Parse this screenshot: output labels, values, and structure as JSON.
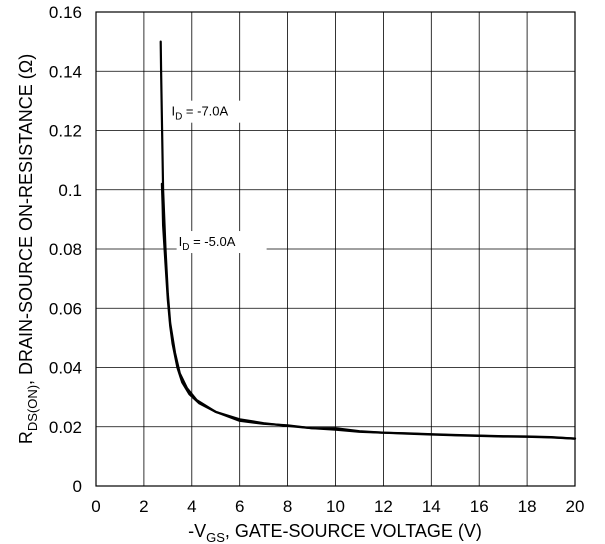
{
  "chart_data": {
    "type": "line",
    "xlabel": {
      "prefix": "-V",
      "sub": "GS",
      "rest": ", GATE-SOURCE VOLTAGE (V)"
    },
    "ylabel": {
      "prefix": "R",
      "sub": "DS(ON)",
      "rest": ", DRAIN-SOURCE ON-RESISTANCE (Ω)"
    },
    "xlim": [
      0,
      20
    ],
    "ylim": [
      0,
      0.16
    ],
    "xticks": [
      0,
      2,
      4,
      6,
      8,
      10,
      12,
      14,
      16,
      18,
      20
    ],
    "yticks": [
      0,
      0.02,
      0.04,
      0.06,
      0.08,
      0.1,
      0.12,
      0.14,
      0.16
    ],
    "xtick_labels": [
      "0",
      "2",
      "4",
      "6",
      "8",
      "10",
      "12",
      "14",
      "16",
      "18",
      "20"
    ],
    "ytick_labels": [
      "0",
      "0.02",
      "0.04",
      "0.06",
      "0.08",
      "0.1",
      "0.12",
      "0.14",
      "0.16"
    ],
    "grid": true,
    "series": [
      {
        "name": "I_D = -7.0A",
        "label": {
          "prefix": "I",
          "sub": "D",
          "rest": " = -7.0A"
        },
        "x": [
          2.7,
          2.72,
          2.76,
          2.8,
          2.9,
          3.0,
          3.1,
          3.3,
          3.5,
          3.8,
          4.2,
          5.0,
          6.0,
          7.0,
          8.0,
          9.0,
          10.0,
          11.0,
          12.0,
          13.0,
          14.0,
          15.0,
          16.0,
          17.0,
          18.0,
          19.0,
          20.0
        ],
        "y": [
          0.15,
          0.14,
          0.12,
          0.1,
          0.08,
          0.065,
          0.055,
          0.045,
          0.038,
          0.033,
          0.029,
          0.025,
          0.022,
          0.021,
          0.0205,
          0.0195,
          0.0195,
          0.0185,
          0.018,
          0.0178,
          0.0175,
          0.0172,
          0.017,
          0.0168,
          0.0167,
          0.0165,
          0.016
        ]
      },
      {
        "name": "I_D = -5.0A",
        "label": {
          "prefix": "I",
          "sub": "D",
          "rest": " = -5.0A"
        },
        "x": [
          2.75,
          2.78,
          2.8,
          2.9,
          3.0,
          3.1,
          3.2,
          3.4,
          3.6,
          3.9,
          4.3,
          5.0,
          6.0,
          7.0,
          8.0,
          9.0,
          10.0,
          11.0,
          12.0,
          13.0,
          14.0,
          15.0,
          16.0,
          17.0,
          18.0,
          19.0,
          20.0
        ],
        "y": [
          0.102,
          0.095,
          0.088,
          0.075,
          0.063,
          0.054,
          0.048,
          0.04,
          0.035,
          0.031,
          0.028,
          0.025,
          0.0225,
          0.0212,
          0.0203,
          0.0195,
          0.019,
          0.0183,
          0.018,
          0.0177,
          0.0174,
          0.0171,
          0.0169,
          0.0167,
          0.0166,
          0.0164,
          0.016
        ]
      }
    ],
    "annotations": [
      {
        "series": 0,
        "x": 3.15,
        "y": 0.125
      },
      {
        "series": 1,
        "x": 3.45,
        "y": 0.081
      }
    ]
  }
}
